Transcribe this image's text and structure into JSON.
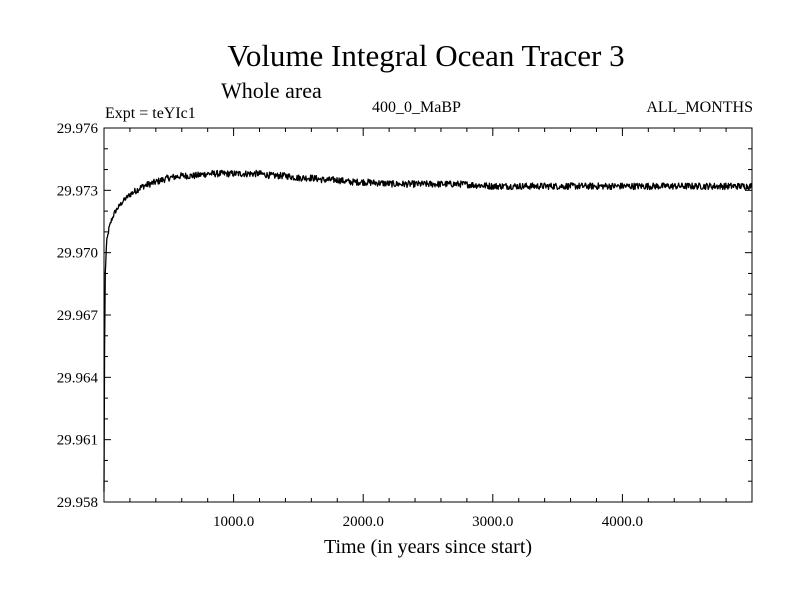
{
  "chart_data": {
    "type": "line",
    "title": "Volume Integral Ocean Tracer 3",
    "subtitle": "Whole area",
    "experiment": "Expt = teYIc1",
    "run_label": "400_0_MaBP",
    "period_label": "ALL_MONTHS",
    "xlabel": "Time (in years since start)",
    "ylabel": "",
    "xlim": [
      0,
      5000
    ],
    "ylim": [
      29.958,
      29.976
    ],
    "grid": false,
    "x_ticks": [
      1000,
      2000,
      3000,
      4000
    ],
    "x_tick_labels": [
      "1000.0",
      "2000.0",
      "3000.0",
      "4000.0"
    ],
    "y_ticks": [
      29.958,
      29.961,
      29.964,
      29.967,
      29.97,
      29.973,
      29.976
    ],
    "y_tick_labels": [
      "29.958",
      "29.961",
      "29.964",
      "29.967",
      "29.970",
      "29.973",
      "29.976"
    ],
    "series": [
      {
        "name": "Volume integral ocean tracer 3",
        "color": "#000000",
        "x": [
          0,
          5,
          10,
          20,
          40,
          60,
          80,
          100,
          150,
          200,
          250,
          300,
          350,
          400,
          500,
          600,
          700,
          800,
          900,
          1000,
          1100,
          1200,
          1300,
          1400,
          1500,
          1600,
          1700,
          1800,
          1900,
          2000,
          2250,
          2500,
          2750,
          3000,
          3250,
          3500,
          3750,
          4000,
          4250,
          4500,
          4750,
          5000
        ],
        "y": [
          29.9585,
          29.9655,
          29.969,
          29.9705,
          29.9712,
          29.9716,
          29.9719,
          29.9721,
          29.9725,
          29.9728,
          29.973,
          29.9732,
          29.9733,
          29.9734,
          29.9736,
          29.9737,
          29.9737,
          29.9738,
          29.9738,
          29.9738,
          29.9738,
          29.9738,
          29.9737,
          29.9737,
          29.9736,
          29.9736,
          29.9735,
          29.9735,
          29.9734,
          29.9734,
          29.9733,
          29.9733,
          29.9733,
          29.9732,
          29.9732,
          29.9732,
          29.9732,
          29.9732,
          29.9732,
          29.9732,
          29.9732,
          29.9732
        ]
      }
    ]
  }
}
